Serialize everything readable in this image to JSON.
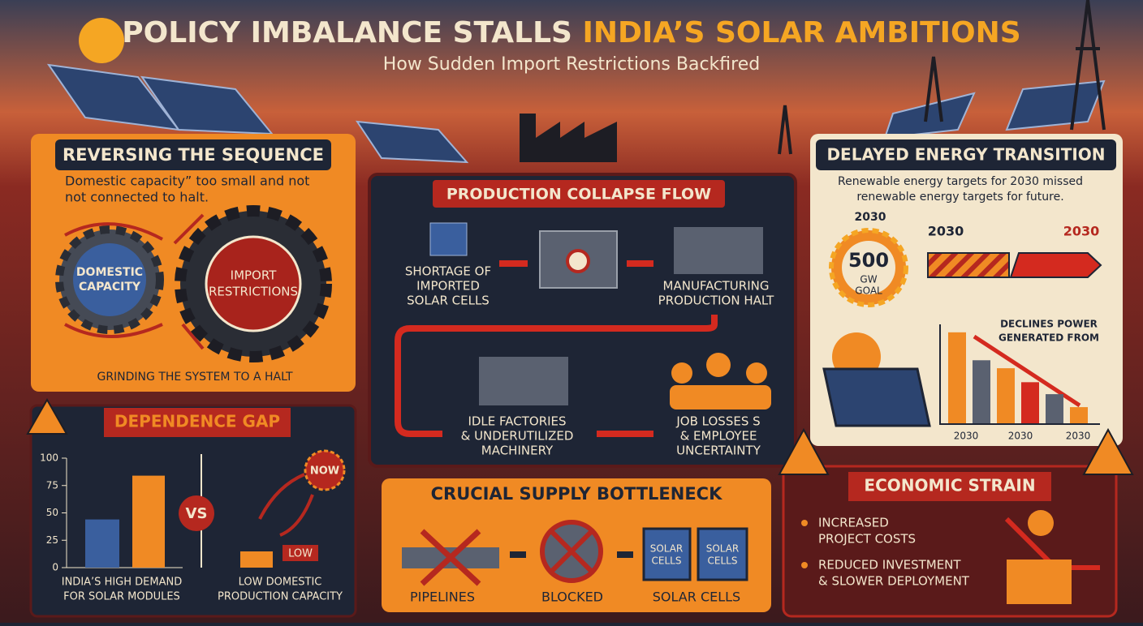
{
  "header": {
    "title": [
      "POLICY IMBALANCE STALLS",
      "INDIA’S SOLAR AMBITIONS"
    ],
    "subtitle": "How Sudden Import Restrictions Backfired"
  },
  "reversing_the_sequence": {
    "title": "REVERSING THE SEQUENCE",
    "text": [
      "Domestic capacity” too small and not",
      "not connected to halt."
    ],
    "gears": [
      [
        "DOMESTIC",
        "CAPACITY"
      ],
      [
        "IMPORT",
        "RESTRICTIONS"
      ]
    ],
    "caption": "GRINDING THE SYSTEM TO A HALT"
  },
  "dependence_gap": {
    "title": "DEPENDENCE GAP",
    "chart": {
      "type": "bar",
      "values": [
        44,
        84
      ],
      "ylim": [
        0,
        100
      ],
      "yticks": [
        0,
        25,
        50,
        75,
        100
      ]
    },
    "left_label": [
      "INDIA’S HIGH DEMAND",
      "FOR SOLAR MODULES"
    ],
    "vs": "VS",
    "now": "NOW",
    "low": "LOW",
    "right_label": [
      "LOW DOMESTIC",
      "PRODUCTION CAPACITY"
    ]
  },
  "production_collapse_flow": {
    "title": "PRODUCTION COLLAPSE FLOW",
    "steps": [
      [
        "SHORTAGE OF",
        "IMPORTED",
        "SOLAR CELLS"
      ],
      [
        "MANUFACTURING",
        "PRODUCTION HALT"
      ],
      [
        "IDLE FACTORIES",
        "& UNDERUTILIZED",
        "MACHINERY"
      ],
      [
        "JOB LOSSES S",
        "& EMPLOYEE",
        "UNCERTAINTY"
      ]
    ]
  },
  "crucial_supply_bottleneck": {
    "title": "CRUCIAL SUPPLY BOTTLENECK",
    "crate_labels": [
      [
        "SOLAR",
        "CELLS"
      ],
      [
        "SOLAR",
        "CELLS"
      ]
    ],
    "labels": [
      "PIPELINES",
      "BLOCKED",
      "SOLAR CELLS"
    ]
  },
  "delayed_energy_transition": {
    "title": "DELAYED ENERGY TRANSITION",
    "text": [
      "Renewable energy targets for 2030 missed",
      "renewable energy targets for future."
    ],
    "goal": {
      "year": "2030",
      "value": "500",
      "unit": [
        "GW",
        "GOAL"
      ]
    },
    "timeline": [
      "2030",
      "2030"
    ],
    "chart": {
      "type": "bar",
      "title": [
        "DECLINES POWER",
        "GENERATED FROM"
      ],
      "values": [
        92,
        64,
        56,
        42,
        30,
        17
      ],
      "ylim": [
        0,
        100
      ],
      "x_labels": [
        "2030",
        "2030",
        "2030"
      ]
    }
  },
  "economic_strain": {
    "title": "ECONOMIC STRAIN",
    "bullets": [
      [
        "INCREASED",
        "PROJECT COSTS"
      ],
      [
        "REDUCED INVESTMENT",
        "& SLOWER DEPLOYMENT"
      ]
    ]
  }
}
